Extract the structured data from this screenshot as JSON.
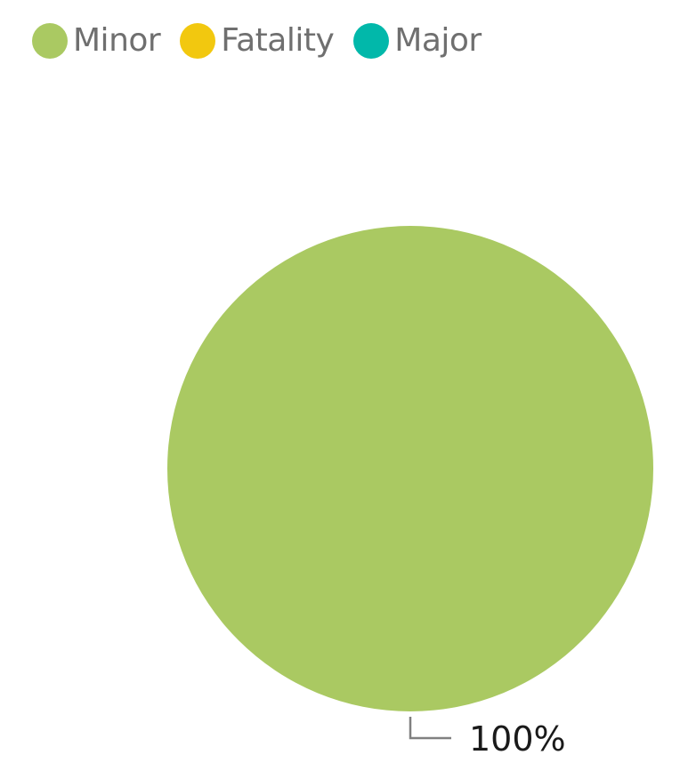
{
  "chart_data": {
    "type": "pie",
    "categories": [
      "Minor",
      "Fatality",
      "Major"
    ],
    "values": [
      100,
      0,
      0
    ],
    "colors": [
      "#aac962",
      "#f2c80f",
      "#01b8aa"
    ],
    "data_labels": [
      "100%"
    ],
    "legend_position": "top-left",
    "title": "",
    "legend": {
      "items": [
        {
          "label": "Minor",
          "color": "#aac962"
        },
        {
          "label": "Fatality",
          "color": "#f2c80f"
        },
        {
          "label": "Major",
          "color": "#01b8aa"
        }
      ]
    }
  }
}
